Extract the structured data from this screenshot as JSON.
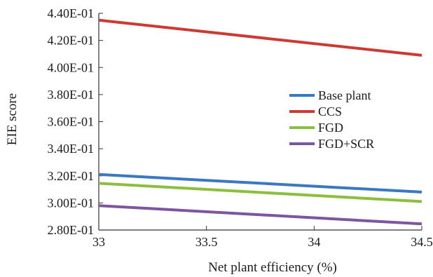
{
  "chart_data": {
    "type": "line",
    "xlabel": "Net plant efficiency (%)",
    "ylabel": "EIE score",
    "xlim": [
      33,
      34.5
    ],
    "ylim": [
      0.28,
      0.44
    ],
    "x_ticks": [
      {
        "value": 33,
        "label": "33"
      },
      {
        "value": 33.5,
        "label": "33.5"
      },
      {
        "value": 34,
        "label": "34"
      },
      {
        "value": 34.5,
        "label": "34.5"
      }
    ],
    "y_ticks": [
      {
        "value": 0.28,
        "label": "2.80E-01"
      },
      {
        "value": 0.3,
        "label": "3.00E-01"
      },
      {
        "value": 0.32,
        "label": "3.20E-01"
      },
      {
        "value": 0.34,
        "label": "3.40E-01"
      },
      {
        "value": 0.36,
        "label": "3.60E-01"
      },
      {
        "value": 0.38,
        "label": "3.80E-01"
      },
      {
        "value": 0.4,
        "label": "4.00E-01"
      },
      {
        "value": 0.42,
        "label": "4.20E-01"
      },
      {
        "value": 0.44,
        "label": "4.40E-01"
      }
    ],
    "grid": false,
    "legend": {
      "position": "center-right"
    },
    "series": [
      {
        "name": "Base plant",
        "color": "#3a78c2",
        "x": [
          33,
          34.5
        ],
        "y": [
          0.321,
          0.308
        ]
      },
      {
        "name": "CCS",
        "color": "#cc3a34",
        "x": [
          33,
          34.5
        ],
        "y": [
          0.435,
          0.409
        ]
      },
      {
        "name": "FGD",
        "color": "#8cbf3f",
        "x": [
          33,
          34.5
        ],
        "y": [
          0.3145,
          0.301
        ]
      },
      {
        "name": "FGD+SCR",
        "color": "#7d55a0",
        "x": [
          33,
          34.5
        ],
        "y": [
          0.298,
          0.2845
        ]
      }
    ]
  }
}
